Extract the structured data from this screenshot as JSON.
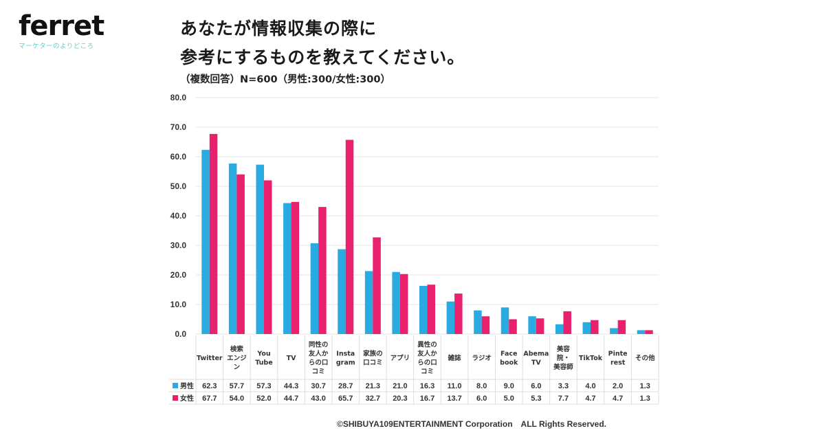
{
  "logo": {
    "name": "ferret",
    "tagline": "マーケターのよりどころ"
  },
  "header": {
    "title_line1": "あなたが情報収集の際に",
    "title_line2": "参考にするものを教えてください。",
    "subtitle": "（複数回答）N=600（男性:300/女性:300）"
  },
  "footer": {
    "copyright": "©SHIBUYA109ENTERTAINMENT Corporation　ALL Rights Reserved."
  },
  "colors": {
    "male": "#29abe2",
    "female": "#e8206e",
    "grid": "#e6e6e6",
    "table_border": "#dddddd"
  },
  "chart_data": {
    "type": "bar",
    "title": "あなたが情報収集の際に参考にするものを教えてください。",
    "xlabel": "",
    "ylabel": "",
    "ylim": [
      0,
      80
    ],
    "yticks": [
      "0.0",
      "10.0",
      "20.0",
      "30.0",
      "40.0",
      "50.0",
      "60.0",
      "70.0",
      "80.0"
    ],
    "grid": true,
    "legend": "table-left",
    "categories": [
      [
        "Twitter"
      ],
      [
        "検索",
        "エンジ",
        "ン"
      ],
      [
        "You",
        "Tube"
      ],
      [
        "TV"
      ],
      [
        "同性の",
        "友人か",
        "らの口",
        "コミ"
      ],
      [
        "Insta",
        "gram"
      ],
      [
        "家族の",
        "口コミ"
      ],
      [
        "アプリ"
      ],
      [
        "異性の",
        "友人か",
        "らの口",
        "コミ"
      ],
      [
        "雑誌"
      ],
      [
        "ラジオ"
      ],
      [
        "Face",
        "book"
      ],
      [
        "Abema",
        "TV"
      ],
      [
        "美容",
        "院・",
        "美容師"
      ],
      [
        "TikTok"
      ],
      [
        "Pinte",
        "rest"
      ],
      [
        "その他"
      ]
    ],
    "series": [
      {
        "name": "男性",
        "values": [
          62.3,
          57.7,
          57.3,
          44.3,
          30.7,
          28.7,
          21.3,
          21.0,
          16.3,
          11.0,
          8.0,
          9.0,
          6.0,
          3.3,
          4.0,
          2.0,
          1.3
        ],
        "labels": [
          "62.3",
          "57.7",
          "57.3",
          "44.3",
          "30.7",
          "28.7",
          "21.3",
          "21.0",
          "16.3",
          "11.0",
          "8.0",
          "9.0",
          "6.0",
          "3.3",
          "4.0",
          "2.0",
          "1.3"
        ]
      },
      {
        "name": "女性",
        "values": [
          67.7,
          54.0,
          52.0,
          44.7,
          43.0,
          65.7,
          32.7,
          20.3,
          16.7,
          13.7,
          6.0,
          5.0,
          5.3,
          7.7,
          4.7,
          4.7,
          1.3
        ],
        "labels": [
          "67.7",
          "54.0",
          "52.0",
          "44.7",
          "43.0",
          "65.7",
          "32.7",
          "20.3",
          "16.7",
          "13.7",
          "6.0",
          "5.0",
          "5.3",
          "7.7",
          "4.7",
          "4.7",
          "1.3"
        ]
      }
    ]
  }
}
